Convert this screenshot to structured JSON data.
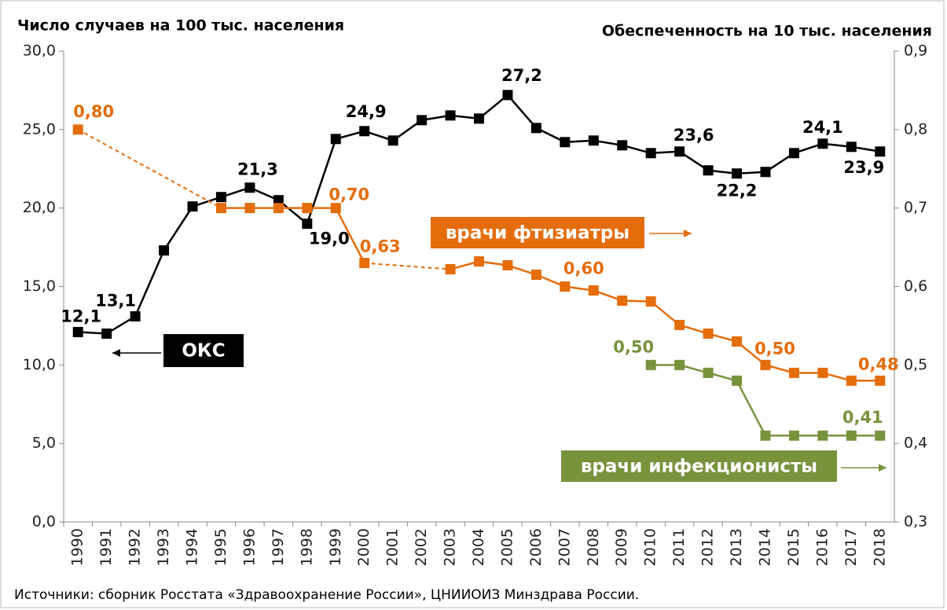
{
  "chart_data": {
    "type": "line",
    "y_axis_title": "Число случаев на 100 тыс. населения",
    "y2_axis_title": "Обеспеченность на 10 тыс. населения",
    "source": "Источники: сборник Росстата «Здравоохранение России», ЦНИИОИЗ Минздрава России.",
    "categories": [
      "1990",
      "1991",
      "1992",
      "1993",
      "1994",
      "1995",
      "1996",
      "1997",
      "1998",
      "1999",
      "2000",
      "2001",
      "2002",
      "2003",
      "2004",
      "2005",
      "2006",
      "2007",
      "2008",
      "2009",
      "2010",
      "2011",
      "2012",
      "2013",
      "2014",
      "2015",
      "2016",
      "2017",
      "2018"
    ],
    "ylim": [
      0,
      30
    ],
    "yticks": [
      {
        "value": 0,
        "label": "0,0"
      },
      {
        "value": 5,
        "label": "5,0"
      },
      {
        "value": 10,
        "label": "10,0"
      },
      {
        "value": 15,
        "label": "15,0"
      },
      {
        "value": 20,
        "label": "20,0"
      },
      {
        "value": 25,
        "label": "25,0"
      },
      {
        "value": 30,
        "label": "30,0"
      }
    ],
    "y2lim": [
      0.3,
      0.9
    ],
    "y2ticks": [
      {
        "value": 0.3,
        "label": "0,3"
      },
      {
        "value": 0.4,
        "label": "0,4"
      },
      {
        "value": 0.5,
        "label": "0,5"
      },
      {
        "value": 0.6,
        "label": "0,6"
      },
      {
        "value": 0.7,
        "label": "0,7"
      },
      {
        "value": 0.8,
        "label": "0,8"
      },
      {
        "value": 0.9,
        "label": "0,9"
      }
    ],
    "series": [
      {
        "name": "ОКС",
        "color": "#000000",
        "axis": "y",
        "values": [
          12.1,
          12.0,
          13.1,
          17.3,
          20.1,
          20.7,
          21.3,
          20.5,
          19.0,
          24.4,
          24.9,
          24.3,
          25.6,
          25.9,
          25.7,
          27.2,
          25.1,
          24.2,
          24.3,
          24.0,
          23.5,
          23.6,
          22.4,
          22.2,
          22.3,
          23.5,
          24.1,
          23.9,
          23.6
        ],
        "value_labels": [
          "12,1",
          null,
          "13,1",
          null,
          null,
          null,
          "21,3",
          null,
          "19,0",
          null,
          "24,9",
          null,
          null,
          null,
          null,
          "27,2",
          null,
          null,
          null,
          null,
          null,
          "23,6",
          null,
          "22,2",
          null,
          null,
          "24,1",
          "23,9",
          null
        ]
      },
      {
        "name": "врачи фтизиатры",
        "color": "#e46c0a",
        "axis": "y2",
        "values": [
          0.8,
          null,
          null,
          null,
          null,
          0.7,
          0.7,
          0.7,
          0.7,
          0.7,
          0.63,
          null,
          null,
          0.622,
          0.632,
          0.627,
          0.615,
          0.6,
          0.595,
          0.582,
          0.581,
          0.551,
          0.54,
          0.53,
          0.5,
          0.49,
          0.49,
          0.48,
          0.48
        ],
        "value_labels": [
          "0,80",
          null,
          null,
          null,
          null,
          null,
          null,
          null,
          null,
          "0,70",
          "0,63",
          null,
          null,
          null,
          null,
          null,
          null,
          "0,60",
          null,
          null,
          null,
          null,
          null,
          null,
          "0,50",
          null,
          null,
          null,
          "0,48"
        ]
      },
      {
        "name": "врачи инфекционисты",
        "color": "#77933c",
        "axis": "y2",
        "values": [
          null,
          null,
          null,
          null,
          null,
          null,
          null,
          null,
          null,
          null,
          null,
          null,
          null,
          null,
          null,
          null,
          null,
          null,
          null,
          null,
          0.5,
          0.5,
          0.49,
          0.48,
          0.41,
          0.41,
          0.41,
          0.41,
          0.41
        ],
        "value_labels": [
          null,
          null,
          null,
          null,
          null,
          null,
          null,
          null,
          null,
          null,
          null,
          null,
          null,
          null,
          null,
          null,
          null,
          null,
          null,
          null,
          "0,50",
          null,
          null,
          null,
          null,
          null,
          null,
          null,
          "0,41"
        ]
      }
    ]
  }
}
